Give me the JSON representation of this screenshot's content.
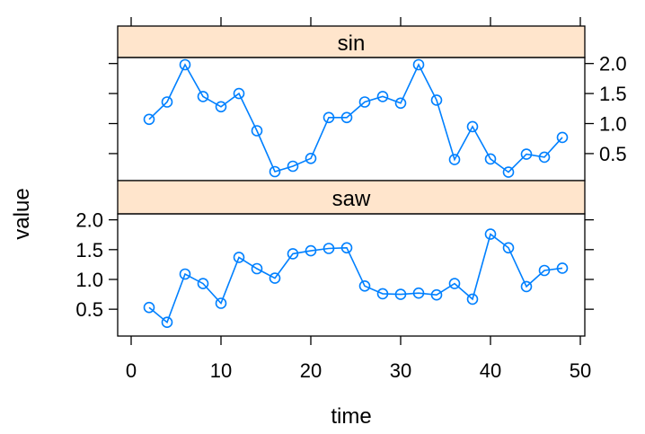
{
  "chart_data": {
    "type": "line",
    "xlabel": "time",
    "ylabel": "value",
    "xlim": [
      -1.5,
      50.5
    ],
    "ylim": [
      0.05,
      2.1
    ],
    "xticks": [
      0,
      10,
      20,
      30,
      40,
      50
    ],
    "yticks": [
      0.5,
      1.0,
      1.5,
      2.0
    ],
    "ytick_labels": [
      "0.5",
      "1.0",
      "1.5",
      "2.0"
    ],
    "grid": false,
    "colors": {
      "series": "#0080ff",
      "strip": "#ffe5cc",
      "axis": "#000000"
    },
    "x": [
      2,
      4,
      6,
      8,
      10,
      12,
      14,
      16,
      18,
      20,
      22,
      24,
      26,
      28,
      30,
      32,
      34,
      36,
      38,
      40,
      42,
      44,
      46,
      48
    ],
    "panels": [
      {
        "name": "sin",
        "values": [
          1.07,
          1.36,
          1.98,
          1.45,
          1.28,
          1.5,
          0.88,
          0.2,
          0.29,
          0.42,
          1.1,
          1.1,
          1.36,
          1.45,
          1.34,
          1.98,
          1.39,
          0.4,
          0.95,
          0.41,
          0.19,
          0.49,
          0.44,
          0.77
        ]
      },
      {
        "name": "saw",
        "values": [
          0.53,
          0.28,
          1.09,
          0.93,
          0.6,
          1.37,
          1.18,
          1.02,
          1.43,
          1.48,
          1.52,
          1.53,
          0.89,
          0.76,
          0.75,
          0.77,
          0.74,
          0.93,
          0.67,
          1.76,
          1.53,
          0.88,
          1.15,
          1.19
        ]
      }
    ]
  }
}
